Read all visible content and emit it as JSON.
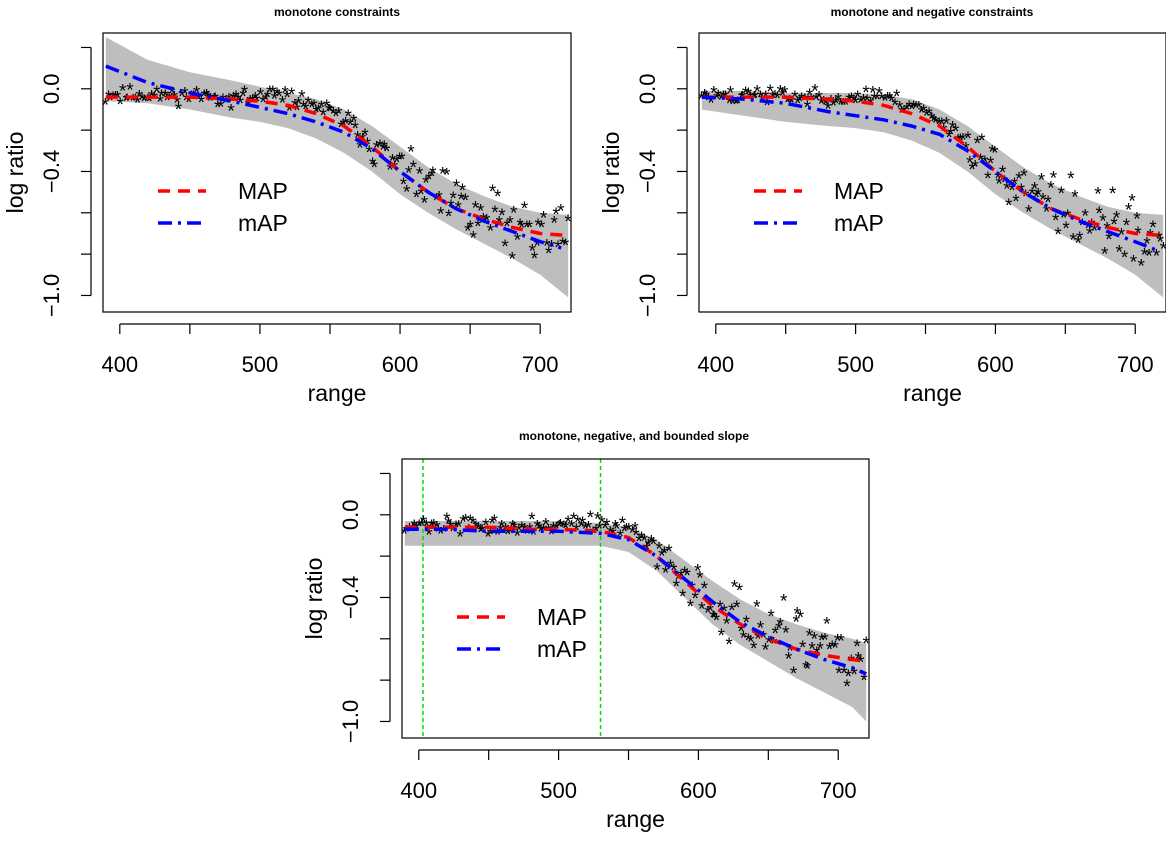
{
  "chart_data": [
    {
      "type": "scatter",
      "title": "monotone constraints",
      "xlabel": "range",
      "ylabel": "log ratio",
      "xlim": [
        388,
        722
      ],
      "ylim": [
        -1.08,
        0.27
      ],
      "xticks": [
        400,
        450,
        500,
        550,
        600,
        650,
        700
      ],
      "xtick_labels": [
        "400",
        "",
        "500",
        "",
        "600",
        "",
        "700"
      ],
      "yticks": [
        0.2,
        0.0,
        -0.2,
        -0.4,
        -0.6,
        -0.8,
        -1.0
      ],
      "ytick_labels": [
        "",
        "0.0",
        "",
        "−0.4",
        "",
        "",
        "−1.0"
      ],
      "legend": {
        "position": "left-middle",
        "entries": [
          "MAP",
          "mAP"
        ]
      },
      "colors": {
        "MAP": "#ff0000",
        "mAP": "#0000ff",
        "band": "#bebebe",
        "points": "#000000"
      },
      "series": [
        {
          "name": "MAP",
          "style": "dashed",
          "x": [
            390,
            420,
            450,
            480,
            500,
            520,
            540,
            560,
            580,
            600,
            620,
            640,
            660,
            680,
            700,
            720
          ],
          "y": [
            -0.04,
            -0.04,
            -0.04,
            -0.05,
            -0.06,
            -0.08,
            -0.12,
            -0.18,
            -0.28,
            -0.4,
            -0.5,
            -0.58,
            -0.63,
            -0.67,
            -0.7,
            -0.71
          ]
        },
        {
          "name": "mAP",
          "style": "dotdash",
          "x": [
            390,
            420,
            450,
            480,
            500,
            520,
            540,
            560,
            580,
            600,
            620,
            640,
            660,
            680,
            700,
            715
          ],
          "y": [
            0.11,
            0.03,
            -0.02,
            -0.06,
            -0.09,
            -0.12,
            -0.16,
            -0.21,
            -0.29,
            -0.4,
            -0.5,
            -0.58,
            -0.64,
            -0.69,
            -0.74,
            -0.77
          ]
        }
      ],
      "band": {
        "x": [
          390,
          420,
          450,
          480,
          500,
          520,
          540,
          560,
          580,
          600,
          620,
          640,
          660,
          680,
          700,
          720
        ],
        "upper": [
          0.25,
          0.14,
          0.08,
          0.04,
          0.01,
          -0.02,
          -0.05,
          -0.1,
          -0.18,
          -0.28,
          -0.38,
          -0.46,
          -0.52,
          -0.57,
          -0.6,
          -0.61
        ],
        "lower": [
          -0.06,
          -0.07,
          -0.1,
          -0.14,
          -0.16,
          -0.19,
          -0.24,
          -0.31,
          -0.4,
          -0.51,
          -0.6,
          -0.68,
          -0.75,
          -0.82,
          -0.9,
          -1.01
        ]
      },
      "scatter_model": {
        "seed": 11,
        "x_start": 390,
        "x_end": 720,
        "n": 190
      }
    },
    {
      "type": "scatter",
      "title": "monotone and negative constraints",
      "xlabel": "range",
      "ylabel": "log ratio",
      "xlim": [
        388,
        722
      ],
      "ylim": [
        -1.08,
        0.27
      ],
      "xticks": [
        400,
        450,
        500,
        550,
        600,
        650,
        700
      ],
      "xtick_labels": [
        "400",
        "",
        "500",
        "",
        "600",
        "",
        "700"
      ],
      "yticks": [
        0.2,
        0.0,
        -0.2,
        -0.4,
        -0.6,
        -0.8,
        -1.0
      ],
      "ytick_labels": [
        "",
        "0.0",
        "",
        "−0.4",
        "",
        "",
        "−1.0"
      ],
      "legend": {
        "position": "left-middle",
        "entries": [
          "MAP",
          "mAP"
        ]
      },
      "colors": {
        "MAP": "#ff0000",
        "mAP": "#0000ff",
        "band": "#bebebe",
        "points": "#000000"
      },
      "series": [
        {
          "name": "MAP",
          "style": "dashed",
          "x": [
            390,
            420,
            450,
            480,
            500,
            520,
            540,
            560,
            580,
            600,
            620,
            640,
            660,
            680,
            700,
            720
          ],
          "y": [
            -0.04,
            -0.04,
            -0.04,
            -0.05,
            -0.06,
            -0.08,
            -0.12,
            -0.18,
            -0.28,
            -0.4,
            -0.5,
            -0.58,
            -0.63,
            -0.67,
            -0.7,
            -0.71
          ]
        },
        {
          "name": "mAP",
          "style": "dotdash",
          "x": [
            390,
            420,
            450,
            480,
            500,
            520,
            540,
            560,
            580,
            600,
            620,
            640,
            660,
            680,
            700,
            715
          ],
          "y": [
            -0.04,
            -0.05,
            -0.07,
            -0.11,
            -0.13,
            -0.15,
            -0.18,
            -0.22,
            -0.3,
            -0.4,
            -0.5,
            -0.58,
            -0.64,
            -0.69,
            -0.74,
            -0.78
          ]
        }
      ],
      "band": {
        "x": [
          390,
          420,
          450,
          480,
          500,
          520,
          540,
          560,
          580,
          600,
          620,
          640,
          660,
          680,
          700,
          720
        ],
        "upper": [
          -0.01,
          -0.01,
          -0.02,
          -0.02,
          -0.02,
          -0.03,
          -0.05,
          -0.1,
          -0.18,
          -0.28,
          -0.38,
          -0.46,
          -0.52,
          -0.57,
          -0.6,
          -0.61
        ],
        "lower": [
          -0.1,
          -0.13,
          -0.16,
          -0.18,
          -0.19,
          -0.21,
          -0.25,
          -0.31,
          -0.4,
          -0.51,
          -0.6,
          -0.68,
          -0.75,
          -0.82,
          -0.9,
          -1.01
        ]
      },
      "scatter_model": {
        "seed": 23,
        "x_start": 390,
        "x_end": 720,
        "n": 190
      }
    },
    {
      "type": "scatter",
      "title": "monotone, negative, and bounded slope",
      "xlabel": "range",
      "ylabel": "log ratio",
      "xlim": [
        388,
        722
      ],
      "ylim": [
        -1.08,
        0.27
      ],
      "xticks": [
        400,
        450,
        500,
        550,
        600,
        650,
        700
      ],
      "xtick_labels": [
        "400",
        "",
        "500",
        "",
        "600",
        "",
        "700"
      ],
      "yticks": [
        0.2,
        0.0,
        -0.2,
        -0.4,
        -0.6,
        -0.8,
        -1.0
      ],
      "ytick_labels": [
        "",
        "0.0",
        "",
        "−0.4",
        "",
        "",
        "−1.0"
      ],
      "legend": {
        "position": "left-middle",
        "entries": [
          "MAP",
          "mAP"
        ]
      },
      "colors": {
        "MAP": "#ff0000",
        "mAP": "#0000ff",
        "band": "#bebebe",
        "points": "#000000",
        "vlines": "#00dd00"
      },
      "vlines": [
        403,
        530
      ],
      "series": [
        {
          "name": "MAP",
          "style": "dashed",
          "x": [
            390,
            420,
            450,
            480,
            500,
            530,
            550,
            570,
            590,
            610,
            630,
            650,
            670,
            690,
            710,
            720
          ],
          "y": [
            -0.06,
            -0.06,
            -0.06,
            -0.07,
            -0.07,
            -0.08,
            -0.11,
            -0.2,
            -0.32,
            -0.44,
            -0.53,
            -0.6,
            -0.65,
            -0.68,
            -0.7,
            -0.71
          ]
        },
        {
          "name": "mAP",
          "style": "dotdash",
          "x": [
            390,
            420,
            450,
            480,
            500,
            530,
            550,
            570,
            590,
            610,
            630,
            650,
            670,
            690,
            710,
            720
          ],
          "y": [
            -0.07,
            -0.07,
            -0.08,
            -0.08,
            -0.08,
            -0.09,
            -0.12,
            -0.2,
            -0.31,
            -0.42,
            -0.52,
            -0.59,
            -0.65,
            -0.7,
            -0.74,
            -0.77
          ]
        }
      ],
      "band": {
        "x": [
          390,
          420,
          450,
          480,
          500,
          530,
          550,
          570,
          590,
          610,
          630,
          650,
          670,
          690,
          710,
          720
        ],
        "upper": [
          -0.03,
          -0.03,
          -0.03,
          -0.03,
          -0.03,
          -0.04,
          -0.06,
          -0.12,
          -0.22,
          -0.32,
          -0.41,
          -0.48,
          -0.53,
          -0.57,
          -0.6,
          -0.62
        ],
        "lower": [
          -0.15,
          -0.15,
          -0.15,
          -0.15,
          -0.15,
          -0.15,
          -0.18,
          -0.27,
          -0.4,
          -0.53,
          -0.63,
          -0.71,
          -0.79,
          -0.86,
          -0.93,
          -1.0
        ]
      },
      "scatter_model": {
        "seed": 37,
        "x_start": 390,
        "x_end": 720,
        "n": 190
      }
    }
  ]
}
